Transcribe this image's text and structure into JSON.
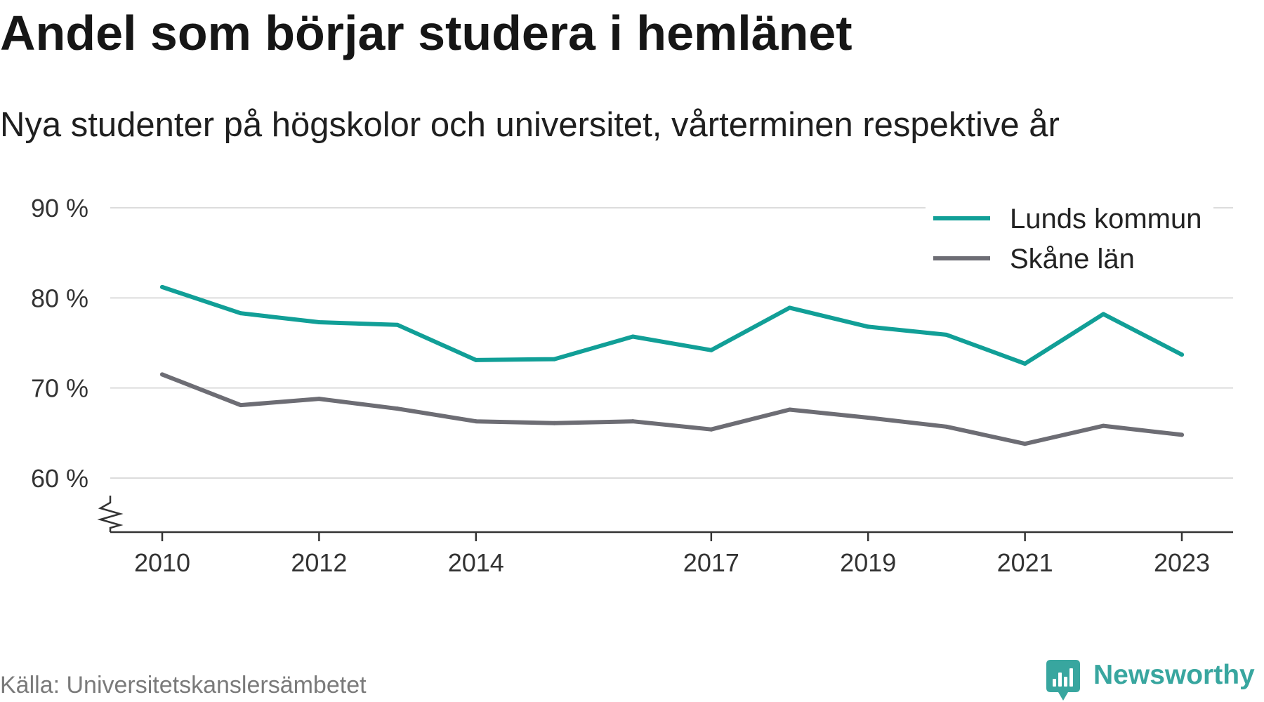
{
  "chart_data": {
    "type": "line",
    "title": "Andel som börjar studera i hemlänet",
    "subtitle": "Nya studenter på högskolor och universitet, vårterminen respektive år",
    "xlabel": "",
    "ylabel": "",
    "x": [
      2010,
      2011,
      2012,
      2013,
      2014,
      2015,
      2016,
      2017,
      2018,
      2019,
      2020,
      2021,
      2022,
      2023
    ],
    "x_ticks": [
      2010,
      2012,
      2014,
      2017,
      2019,
      2021,
      2023
    ],
    "x_tick_labels": [
      "2010",
      "2012",
      "2014",
      "2017",
      "2019",
      "2021",
      "2023"
    ],
    "y_ticks": [
      90,
      80,
      70,
      60
    ],
    "y_tick_labels": [
      "90 %",
      "80 %",
      "70 %",
      "60 %"
    ],
    "ylim": [
      54,
      90
    ],
    "grid": true,
    "y_axis_break": true,
    "legend_position": "top-right",
    "series": [
      {
        "name": "Lunds kommun",
        "color": "#119f97",
        "values": [
          81.2,
          78.3,
          77.3,
          77.0,
          73.1,
          73.2,
          75.7,
          74.2,
          78.9,
          76.8,
          75.9,
          72.7,
          78.2,
          73.7
        ]
      },
      {
        "name": "Skåne län",
        "color": "#6d6d74",
        "values": [
          71.5,
          68.1,
          68.8,
          67.7,
          66.3,
          66.1,
          66.3,
          65.4,
          67.6,
          66.7,
          65.7,
          63.8,
          65.8,
          64.8
        ]
      }
    ]
  },
  "source": "Källa: Universitetskanslersämbetet",
  "brand": {
    "name": "Newsworthy",
    "icon": "newsworthy-logo-icon",
    "color": "#38a69f"
  }
}
